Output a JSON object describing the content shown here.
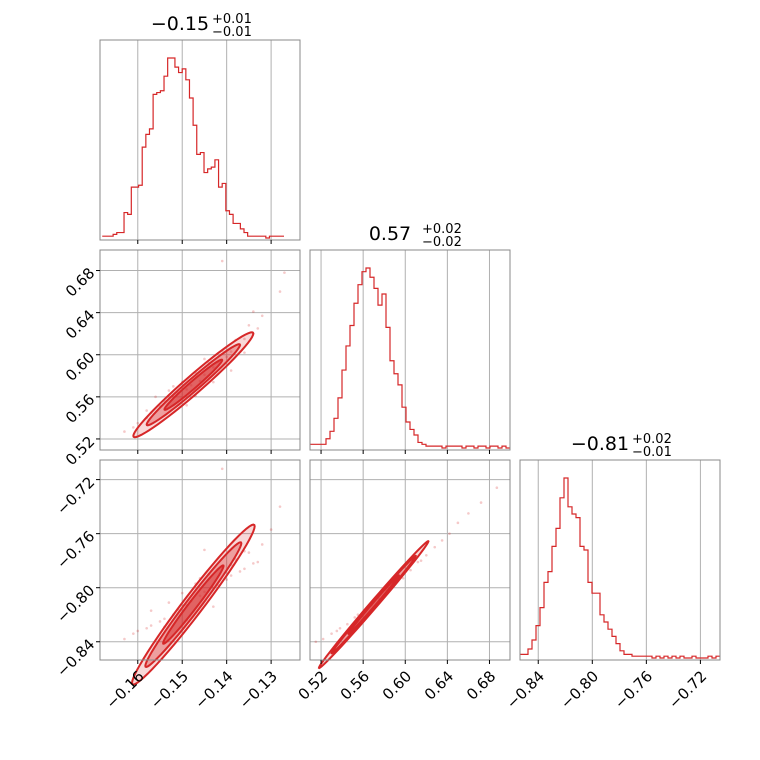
{
  "chart_data": {
    "type": "corner",
    "color": "#d62728",
    "params": [
      {
        "title": {
          "median": "−0.15",
          "plus": "+0.01",
          "minus": "−0.01"
        },
        "range": [
          -0.1685,
          -0.1235
        ],
        "ticks": [
          {
            "v": -0.16,
            "label": "−0.16"
          },
          {
            "v": -0.15,
            "label": "−0.15"
          },
          {
            "v": -0.14,
            "label": "−0.14"
          },
          {
            "v": -0.13,
            "label": "−0.13"
          }
        ],
        "hist": {
          "start": -0.168,
          "bin_width": 0.000818,
          "values": [
            1,
            1,
            1,
            2,
            3,
            3,
            14,
            13,
            28,
            28,
            29,
            50,
            57,
            60,
            79,
            80,
            81,
            89,
            99,
            99,
            94,
            91,
            93,
            87,
            77,
            62,
            46,
            47,
            36,
            38,
            39,
            43,
            28,
            30,
            15,
            13,
            8,
            8,
            5,
            3,
            1,
            1,
            1,
            1,
            1,
            0,
            1,
            1,
            1,
            1
          ]
        }
      },
      {
        "title": {
          "median": "0.57",
          "plus": "+0.02",
          "minus": "−0.02"
        },
        "range": [
          0.5095,
          0.6995
        ],
        "ticks": [
          {
            "v": 0.52,
            "label": "0.52"
          },
          {
            "v": 0.56,
            "label": "0.56"
          },
          {
            "v": 0.6,
            "label": "0.60"
          },
          {
            "v": 0.64,
            "label": "0.64"
          },
          {
            "v": 0.68,
            "label": "0.68"
          }
        ],
        "hist": {
          "start": 0.5095,
          "bin_width": 0.0038,
          "values": [
            2,
            2,
            2,
            2,
            5,
            9,
            16,
            27,
            42,
            55,
            66,
            78,
            88,
            95,
            97,
            92,
            86,
            77,
            83,
            65,
            47,
            40,
            34,
            22,
            14,
            10,
            7,
            3,
            2,
            1,
            1,
            1,
            1,
            0,
            1,
            1,
            1,
            1,
            0,
            1,
            1,
            0,
            1,
            1,
            0,
            1,
            1,
            0,
            1,
            0
          ]
        }
      },
      {
        "title": {
          "median": "−0.81",
          "plus": "+0.02",
          "minus": "−0.01"
        },
        "range": [
          -0.8535,
          -0.7055
        ],
        "ticks": [
          {
            "v": -0.84,
            "label": "−0.84"
          },
          {
            "v": -0.8,
            "label": "−0.80"
          },
          {
            "v": -0.76,
            "label": "−0.76"
          },
          {
            "v": -0.72,
            "label": "−0.72"
          }
        ],
        "hist": {
          "start": -0.8535,
          "bin_width": 0.00296,
          "values": [
            2,
            2,
            5,
            10,
            18,
            28,
            42,
            48,
            62,
            72,
            89,
            100,
            84,
            80,
            78,
            62,
            60,
            42,
            36,
            36,
            24,
            20,
            16,
            12,
            8,
            4,
            2,
            2,
            1,
            1,
            1,
            1,
            1,
            0,
            1,
            0,
            1,
            0,
            1,
            0,
            1,
            0,
            0,
            1,
            0,
            0,
            0,
            1,
            0,
            1
          ]
        }
      }
    ],
    "pairs": [
      {
        "row": 1,
        "col": 0,
        "center": [
          -0.1475,
          0.5715
        ],
        "slope": 3.6,
        "contours": [
          {
            "halfLength": 0.0135,
            "halfWidth": 0.011
          },
          {
            "halfLength": 0.0105,
            "halfWidth": 0.0075
          },
          {
            "halfLength": 0.0065,
            "halfWidth": 0.0045
          }
        ],
        "points": [
          [
            -0.161,
            0.531
          ],
          [
            -0.16,
            0.535
          ],
          [
            -0.158,
            0.54
          ],
          [
            -0.157,
            0.545
          ],
          [
            -0.155,
            0.551
          ],
          [
            -0.154,
            0.556
          ],
          [
            -0.152,
            0.56
          ],
          [
            -0.151,
            0.564
          ],
          [
            -0.149,
            0.567
          ],
          [
            -0.148,
            0.571
          ],
          [
            -0.146,
            0.575
          ],
          [
            -0.145,
            0.581
          ],
          [
            -0.143,
            0.588
          ],
          [
            -0.142,
            0.593
          ],
          [
            -0.14,
            0.598
          ],
          [
            -0.139,
            0.603
          ],
          [
            -0.137,
            0.609
          ],
          [
            -0.136,
            0.615
          ],
          [
            -0.134,
            0.62
          ],
          [
            -0.133,
            0.625
          ],
          [
            -0.156,
            0.56
          ],
          [
            -0.153,
            0.566
          ],
          [
            -0.15,
            0.574
          ],
          [
            -0.147,
            0.583
          ],
          [
            -0.144,
            0.592
          ],
          [
            -0.141,
            0.604
          ],
          [
            -0.138,
            0.614
          ],
          [
            -0.135,
            0.628
          ],
          [
            -0.132,
            0.637
          ],
          [
            -0.128,
            0.66
          ],
          [
            -0.127,
            0.678
          ],
          [
            -0.141,
            0.689
          ],
          [
            -0.158,
            0.547
          ],
          [
            -0.147,
            0.561
          ],
          [
            -0.139,
            0.585
          ],
          [
            -0.149,
            0.552
          ],
          [
            -0.143,
            0.574
          ],
          [
            -0.136,
            0.602
          ],
          [
            -0.152,
            0.57
          ],
          [
            -0.145,
            0.596
          ],
          [
            -0.163,
            0.527
          ],
          [
            -0.134,
            0.641
          ]
        ]
      },
      {
        "row": 2,
        "col": 0,
        "center": [
          -0.1475,
          -0.8125
        ],
        "slope": 4.2,
        "contours": [
          {
            "halfLength": 0.0138,
            "halfWidth": 0.012
          },
          {
            "halfLength": 0.0108,
            "halfWidth": 0.0085
          },
          {
            "halfLength": 0.0068,
            "halfWidth": 0.005
          }
        ],
        "points": [
          [
            -0.161,
            -0.834
          ],
          [
            -0.16,
            -0.832
          ],
          [
            -0.158,
            -0.83
          ],
          [
            -0.157,
            -0.828
          ],
          [
            -0.155,
            -0.825
          ],
          [
            -0.154,
            -0.823
          ],
          [
            -0.152,
            -0.82
          ],
          [
            -0.151,
            -0.816
          ],
          [
            -0.149,
            -0.813
          ],
          [
            -0.148,
            -0.81
          ],
          [
            -0.146,
            -0.806
          ],
          [
            -0.145,
            -0.803
          ],
          [
            -0.143,
            -0.8
          ],
          [
            -0.142,
            -0.798
          ],
          [
            -0.14,
            -0.794
          ],
          [
            -0.139,
            -0.791
          ],
          [
            -0.137,
            -0.788
          ],
          [
            -0.136,
            -0.786
          ],
          [
            -0.134,
            -0.782
          ],
          [
            -0.133,
            -0.781
          ],
          [
            -0.157,
            -0.817
          ],
          [
            -0.153,
            -0.811
          ],
          [
            -0.15,
            -0.804
          ],
          [
            -0.147,
            -0.797
          ],
          [
            -0.144,
            -0.79
          ],
          [
            -0.141,
            -0.785
          ],
          [
            -0.138,
            -0.779
          ],
          [
            -0.135,
            -0.774
          ],
          [
            -0.132,
            -0.768
          ],
          [
            -0.13,
            -0.757
          ],
          [
            -0.128,
            -0.74
          ],
          [
            -0.141,
            -0.712
          ],
          [
            -0.145,
            -0.772
          ],
          [
            -0.139,
            -0.783
          ],
          [
            -0.154,
            -0.829
          ],
          [
            -0.149,
            -0.824
          ],
          [
            -0.143,
            -0.814
          ],
          [
            -0.163,
            -0.838
          ],
          [
            -0.146,
            -0.793
          ],
          [
            -0.136,
            -0.773
          ]
        ]
      },
      {
        "row": 2,
        "col": 1,
        "center": [
          0.57,
          -0.8125
        ],
        "slope": 0.9,
        "contours": [
          {
            "halfLength": 0.052,
            "halfWidth": 0.004
          },
          {
            "halfLength": 0.04,
            "halfWidth": 0.0028
          },
          {
            "halfLength": 0.024,
            "halfWidth": 0.0018
          }
        ],
        "points": [
          [
            0.515,
            -0.84
          ],
          [
            0.522,
            -0.838
          ],
          [
            0.53,
            -0.834
          ],
          [
            0.538,
            -0.83
          ],
          [
            0.545,
            -0.827
          ],
          [
            0.552,
            -0.822
          ],
          [
            0.56,
            -0.818
          ],
          [
            0.568,
            -0.813
          ],
          [
            0.575,
            -0.808
          ],
          [
            0.582,
            -0.802
          ],
          [
            0.59,
            -0.797
          ],
          [
            0.598,
            -0.793
          ],
          [
            0.605,
            -0.787
          ],
          [
            0.612,
            -0.781
          ],
          [
            0.62,
            -0.776
          ],
          [
            0.628,
            -0.77
          ],
          [
            0.635,
            -0.765
          ],
          [
            0.642,
            -0.76
          ],
          [
            0.65,
            -0.752
          ],
          [
            0.66,
            -0.745
          ],
          [
            0.672,
            -0.737
          ],
          [
            0.687,
            -0.726
          ],
          [
            0.535,
            -0.832
          ],
          [
            0.555,
            -0.82
          ],
          [
            0.585,
            -0.798
          ],
          [
            0.615,
            -0.78
          ]
        ]
      }
    ]
  }
}
